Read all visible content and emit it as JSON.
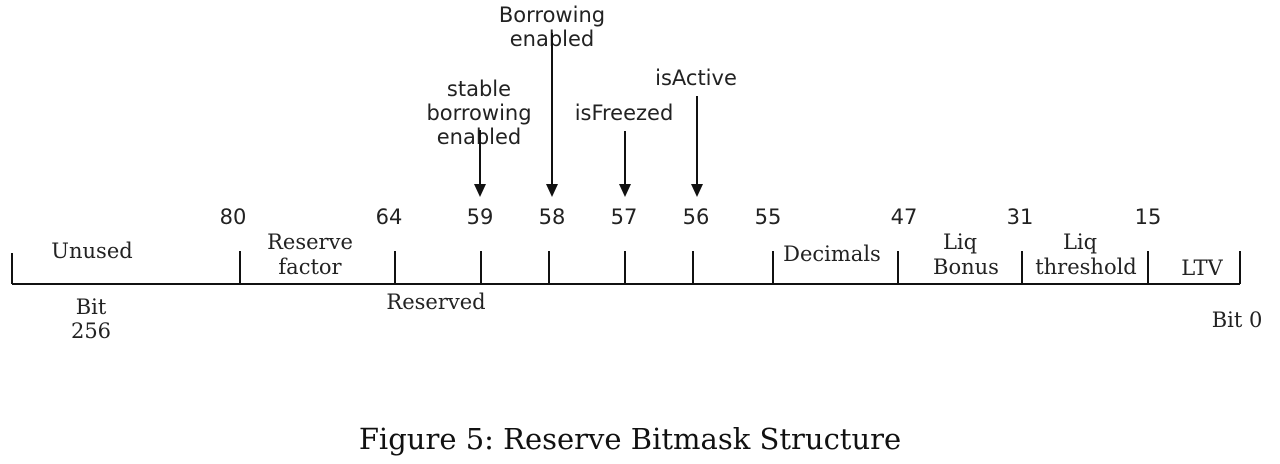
{
  "field_labels": {
    "unused": "Unused",
    "reserve_factor_1": "Reserve",
    "reserve_factor_2": "factor",
    "reserved": "Reserved",
    "decimals": "Decimals",
    "liq_bonus_1": "Liq",
    "liq_bonus_2": "Bonus",
    "liq_threshold_1": "Liq",
    "liq_threshold_2": "threshold",
    "ltv": "LTV"
  },
  "bit_positions": {
    "p80": "80",
    "p64": "64",
    "p59": "59",
    "p58": "58",
    "p57": "57",
    "p56": "56",
    "p55": "55",
    "p47": "47",
    "p31": "31",
    "p15": "15"
  },
  "ends": {
    "left_1": "Bit",
    "left_2": "256",
    "right": "Bit 0"
  },
  "flags": {
    "stable_1": "stable",
    "stable_2": "borrowing",
    "stable_3": "enabled",
    "borrowing_1": "Borrowing",
    "borrowing_2": "enabled",
    "frozen": "isFreezed",
    "active": "isActive"
  },
  "caption": "Figure 5: Reserve Bitmask Structure"
}
